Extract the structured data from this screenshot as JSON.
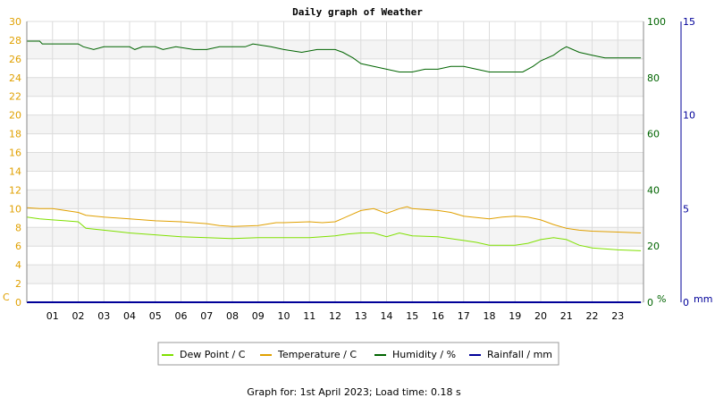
{
  "chart_data": {
    "type": "line",
    "title": "Daily graph of Weather",
    "footer": "Graph for: 1st April 2023; Load time: 0.18 s",
    "grid": true,
    "legend_position": "bottom",
    "x": {
      "range": [
        0,
        24
      ],
      "tick_labels": [
        "01",
        "02",
        "03",
        "04",
        "05",
        "06",
        "07",
        "08",
        "09",
        "10",
        "11",
        "12",
        "13",
        "14",
        "15",
        "16",
        "17",
        "18",
        "19",
        "20",
        "21",
        "22",
        "23"
      ]
    },
    "axes": {
      "left": {
        "unit_label": "C",
        "color": "#e0a000",
        "range": [
          0,
          30
        ],
        "ticks": [
          "0",
          "2",
          "4",
          "6",
          "8",
          "10",
          "12",
          "14",
          "16",
          "18",
          "20",
          "22",
          "24",
          "26",
          "28",
          "30"
        ]
      },
      "right": {
        "unit_label": "%",
        "color": "#006400",
        "range": [
          0,
          100
        ],
        "ticks": [
          "0",
          "20",
          "40",
          "60",
          "80",
          "100"
        ]
      },
      "far_right": {
        "unit_label": "mm",
        "color": "#000099",
        "range": [
          0,
          15
        ],
        "ticks": [
          "0",
          "5",
          "10",
          "15"
        ]
      }
    },
    "series": [
      {
        "name": "Dew Point / C",
        "axis": "left",
        "color": "#7fe000",
        "points": [
          [
            0,
            9.1
          ],
          [
            0.5,
            8.9
          ],
          [
            1,
            8.8
          ],
          [
            1.5,
            8.7
          ],
          [
            2,
            8.6
          ],
          [
            2.3,
            7.9
          ],
          [
            3,
            7.7
          ],
          [
            4,
            7.4
          ],
          [
            5,
            7.2
          ],
          [
            6,
            7.0
          ],
          [
            7,
            6.9
          ],
          [
            8,
            6.8
          ],
          [
            9,
            6.9
          ],
          [
            10,
            6.9
          ],
          [
            11,
            6.9
          ],
          [
            12,
            7.1
          ],
          [
            12.5,
            7.3
          ],
          [
            13,
            7.4
          ],
          [
            13.5,
            7.4
          ],
          [
            14,
            7.0
          ],
          [
            14.5,
            7.4
          ],
          [
            15,
            7.1
          ],
          [
            16,
            7.0
          ],
          [
            17,
            6.6
          ],
          [
            17.5,
            6.4
          ],
          [
            18,
            6.1
          ],
          [
            19,
            6.1
          ],
          [
            19.5,
            6.3
          ],
          [
            20,
            6.7
          ],
          [
            20.5,
            6.9
          ],
          [
            21,
            6.7
          ],
          [
            21.5,
            6.1
          ],
          [
            22,
            5.8
          ],
          [
            23,
            5.6
          ],
          [
            23.9,
            5.5
          ]
        ]
      },
      {
        "name": "Temperature / C",
        "axis": "left",
        "color": "#e0a000",
        "points": [
          [
            0,
            10.1
          ],
          [
            0.5,
            10.0
          ],
          [
            1,
            10.0
          ],
          [
            1.5,
            9.8
          ],
          [
            2,
            9.6
          ],
          [
            2.3,
            9.3
          ],
          [
            3,
            9.1
          ],
          [
            4,
            8.9
          ],
          [
            5,
            8.7
          ],
          [
            6,
            8.6
          ],
          [
            7,
            8.4
          ],
          [
            7.5,
            8.2
          ],
          [
            8,
            8.1
          ],
          [
            9,
            8.2
          ],
          [
            9.7,
            8.5
          ],
          [
            10,
            8.5
          ],
          [
            11,
            8.6
          ],
          [
            11.5,
            8.5
          ],
          [
            12,
            8.6
          ],
          [
            12.5,
            9.2
          ],
          [
            13,
            9.8
          ],
          [
            13.5,
            10.0
          ],
          [
            14,
            9.5
          ],
          [
            14.5,
            10.0
          ],
          [
            14.8,
            10.2
          ],
          [
            15,
            10.0
          ],
          [
            16,
            9.8
          ],
          [
            16.5,
            9.6
          ],
          [
            17,
            9.2
          ],
          [
            18,
            8.9
          ],
          [
            18.5,
            9.1
          ],
          [
            19,
            9.2
          ],
          [
            19.5,
            9.1
          ],
          [
            20,
            8.8
          ],
          [
            20.5,
            8.3
          ],
          [
            21,
            7.9
          ],
          [
            21.5,
            7.7
          ],
          [
            22,
            7.6
          ],
          [
            23,
            7.5
          ],
          [
            23.9,
            7.4
          ]
        ]
      },
      {
        "name": "Humidity / %",
        "axis": "right",
        "color": "#006400",
        "points": [
          [
            0,
            93
          ],
          [
            0.5,
            93
          ],
          [
            0.6,
            92
          ],
          [
            2,
            92
          ],
          [
            2.2,
            91
          ],
          [
            2.6,
            90
          ],
          [
            3,
            91
          ],
          [
            4,
            91
          ],
          [
            4.2,
            90
          ],
          [
            4.5,
            91
          ],
          [
            5,
            91
          ],
          [
            5.3,
            90
          ],
          [
            5.8,
            91
          ],
          [
            6.5,
            90
          ],
          [
            7,
            90
          ],
          [
            7.5,
            91
          ],
          [
            8,
            91
          ],
          [
            8.5,
            91
          ],
          [
            8.8,
            92
          ],
          [
            9.5,
            91
          ],
          [
            10,
            90
          ],
          [
            10.7,
            89
          ],
          [
            11.3,
            90
          ],
          [
            12,
            90
          ],
          [
            12.3,
            89
          ],
          [
            12.7,
            87
          ],
          [
            13,
            85
          ],
          [
            13.5,
            84
          ],
          [
            14,
            83
          ],
          [
            14.5,
            82
          ],
          [
            15,
            82
          ],
          [
            15.5,
            83
          ],
          [
            16,
            83
          ],
          [
            16.5,
            84
          ],
          [
            17,
            84
          ],
          [
            17.5,
            83
          ],
          [
            18,
            82
          ],
          [
            19,
            82
          ],
          [
            19.3,
            82
          ],
          [
            19.7,
            84
          ],
          [
            20,
            86
          ],
          [
            20.5,
            88
          ],
          [
            20.8,
            90
          ],
          [
            21,
            91
          ],
          [
            21.5,
            89
          ],
          [
            22,
            88
          ],
          [
            22.5,
            87
          ],
          [
            23,
            87
          ],
          [
            23.9,
            87
          ]
        ]
      },
      {
        "name": "Rainfall / mm",
        "axis": "far_right",
        "color": "#000099",
        "points": [
          [
            0,
            0
          ],
          [
            23.9,
            0
          ]
        ]
      }
    ]
  }
}
